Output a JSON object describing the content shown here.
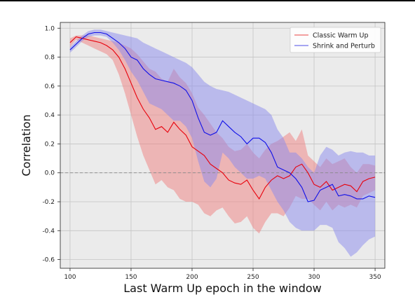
{
  "chart_data": {
    "type": "line",
    "title": "",
    "xlabel": "Last Warm Up epoch in the window",
    "ylabel": "Correlation",
    "xlim": [
      92,
      358
    ],
    "ylim": [
      -0.66,
      1.04
    ],
    "xticks": [
      100,
      150,
      200,
      250,
      300,
      350
    ],
    "yticks": [
      -0.6,
      -0.4,
      -0.2,
      0.0,
      0.2,
      0.4,
      0.6,
      0.8,
      1.0
    ],
    "grid": true,
    "reference_line": {
      "y": 0.0,
      "style": "dashed",
      "color": "#888888"
    },
    "legend": {
      "placement": "top-right"
    },
    "series": [
      {
        "name": "Classic Warm Up",
        "color": "#e8000b",
        "band_color": "#f08080",
        "x": [
          100,
          105,
          110,
          115,
          120,
          125,
          130,
          135,
          140,
          145,
          150,
          155,
          160,
          165,
          170,
          175,
          180,
          185,
          190,
          195,
          200,
          205,
          210,
          215,
          220,
          225,
          230,
          235,
          240,
          245,
          250,
          255,
          260,
          265,
          270,
          275,
          280,
          285,
          290,
          295,
          300,
          305,
          310,
          315,
          320,
          325,
          330,
          335,
          340,
          345,
          350
        ],
        "values": [
          0.9,
          0.94,
          0.93,
          0.92,
          0.91,
          0.9,
          0.88,
          0.85,
          0.8,
          0.72,
          0.62,
          0.52,
          0.44,
          0.38,
          0.3,
          0.32,
          0.28,
          0.35,
          0.3,
          0.26,
          0.18,
          0.15,
          0.12,
          0.06,
          0.03,
          0.0,
          -0.05,
          -0.07,
          -0.08,
          -0.05,
          -0.12,
          -0.18,
          -0.1,
          -0.05,
          -0.02,
          -0.04,
          -0.02,
          0.04,
          0.06,
          0.0,
          -0.08,
          -0.1,
          -0.06,
          -0.12,
          -0.1,
          -0.08,
          -0.09,
          -0.13,
          -0.06,
          -0.04,
          -0.03
        ],
        "upper": [
          0.93,
          0.95,
          0.95,
          0.95,
          0.94,
          0.93,
          0.92,
          0.91,
          0.9,
          0.88,
          0.86,
          0.82,
          0.77,
          0.72,
          0.7,
          0.65,
          0.63,
          0.72,
          0.66,
          0.62,
          0.55,
          0.45,
          0.4,
          0.34,
          0.28,
          0.24,
          0.18,
          0.15,
          0.16,
          0.2,
          0.14,
          0.1,
          0.16,
          0.2,
          0.22,
          0.25,
          0.28,
          0.22,
          0.3,
          0.12,
          0.08,
          0.04,
          0.1,
          0.06,
          0.08,
          0.1,
          0.04,
          0.0,
          0.06,
          0.06,
          0.05
        ],
        "lower": [
          0.87,
          0.92,
          0.9,
          0.88,
          0.86,
          0.84,
          0.82,
          0.78,
          0.68,
          0.55,
          0.4,
          0.25,
          0.12,
          0.02,
          -0.08,
          -0.05,
          -0.1,
          -0.12,
          -0.18,
          -0.2,
          -0.2,
          -0.22,
          -0.28,
          -0.3,
          -0.26,
          -0.24,
          -0.3,
          -0.35,
          -0.34,
          -0.3,
          -0.38,
          -0.42,
          -0.34,
          -0.28,
          -0.28,
          -0.3,
          -0.24,
          -0.16,
          -0.18,
          -0.18,
          -0.22,
          -0.26,
          -0.2,
          -0.26,
          -0.22,
          -0.24,
          -0.22,
          -0.24,
          -0.16,
          -0.14,
          -0.12
        ]
      },
      {
        "name": "Shrink and Perturb",
        "color": "#1010e8",
        "band_color": "#8a8aee",
        "x": [
          100,
          105,
          110,
          115,
          120,
          125,
          130,
          135,
          140,
          145,
          150,
          155,
          160,
          165,
          170,
          175,
          180,
          185,
          190,
          195,
          200,
          205,
          210,
          215,
          220,
          225,
          230,
          235,
          240,
          245,
          250,
          255,
          260,
          265,
          270,
          275,
          280,
          285,
          290,
          295,
          300,
          305,
          310,
          315,
          320,
          325,
          330,
          335,
          340,
          345,
          350
        ],
        "values": [
          0.85,
          0.89,
          0.93,
          0.96,
          0.97,
          0.97,
          0.96,
          0.93,
          0.9,
          0.86,
          0.8,
          0.78,
          0.72,
          0.68,
          0.65,
          0.64,
          0.63,
          0.62,
          0.6,
          0.57,
          0.5,
          0.38,
          0.28,
          0.26,
          0.28,
          0.36,
          0.32,
          0.28,
          0.25,
          0.2,
          0.24,
          0.24,
          0.21,
          0.14,
          0.04,
          0.02,
          0.0,
          -0.04,
          -0.1,
          -0.2,
          -0.19,
          -0.12,
          -0.1,
          -0.08,
          -0.16,
          -0.15,
          -0.16,
          -0.18,
          -0.18,
          -0.16,
          -0.17
        ],
        "upper": [
          0.87,
          0.91,
          0.95,
          0.98,
          0.99,
          0.99,
          0.98,
          0.97,
          0.96,
          0.95,
          0.94,
          0.93,
          0.9,
          0.88,
          0.86,
          0.84,
          0.82,
          0.8,
          0.78,
          0.76,
          0.73,
          0.68,
          0.63,
          0.6,
          0.58,
          0.57,
          0.56,
          0.54,
          0.52,
          0.5,
          0.48,
          0.46,
          0.44,
          0.4,
          0.3,
          0.24,
          0.14,
          0.14,
          0.1,
          0.04,
          0.0,
          0.12,
          0.18,
          0.16,
          0.12,
          0.14,
          0.15,
          0.14,
          0.14,
          0.12,
          0.12
        ],
        "lower": [
          0.83,
          0.87,
          0.91,
          0.94,
          0.95,
          0.95,
          0.94,
          0.9,
          0.85,
          0.78,
          0.7,
          0.64,
          0.56,
          0.48,
          0.46,
          0.44,
          0.4,
          0.36,
          0.36,
          0.32,
          0.24,
          0.08,
          -0.06,
          -0.1,
          -0.04,
          0.14,
          0.1,
          0.04,
          0.0,
          -0.04,
          -0.04,
          -0.02,
          -0.04,
          -0.12,
          -0.2,
          -0.26,
          -0.34,
          -0.38,
          -0.4,
          -0.4,
          -0.4,
          -0.36,
          -0.36,
          -0.38,
          -0.48,
          -0.52,
          -0.58,
          -0.55,
          -0.5,
          -0.46,
          -0.44
        ]
      }
    ]
  }
}
